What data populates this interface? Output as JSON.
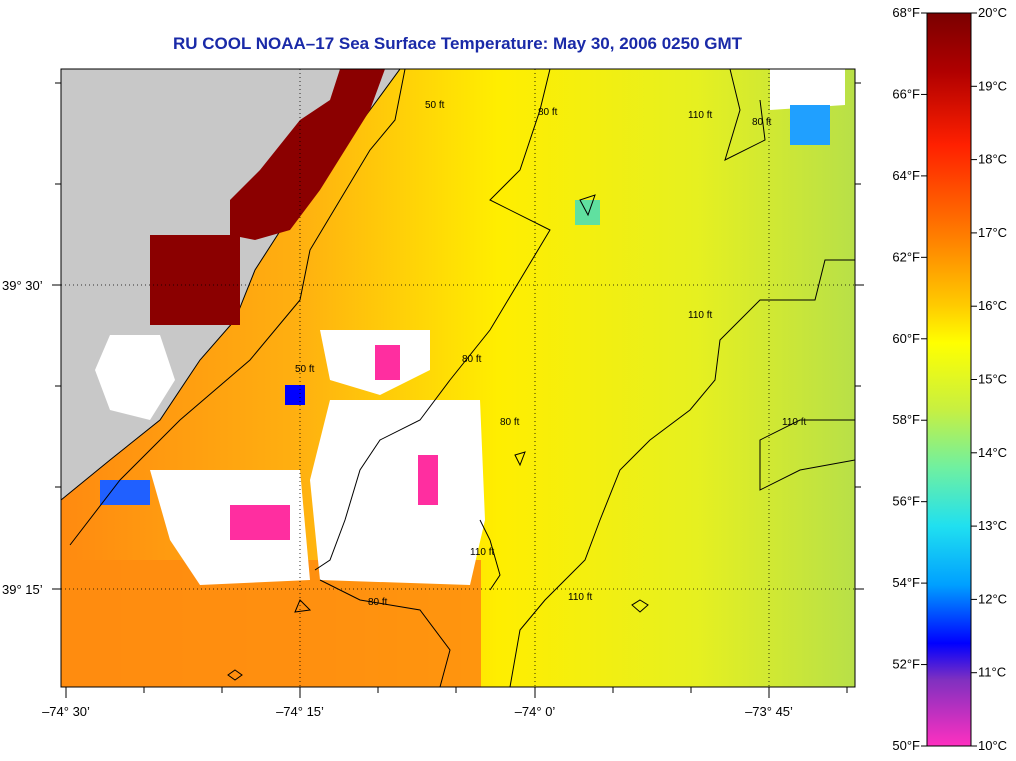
{
  "title": "RU COOL  NOAA–17  Sea Surface Temperature:  May 30, 2006 0250 GMT",
  "map": {
    "lat_labels": [
      "39° 30’",
      "39° 15’"
    ],
    "lon_labels": [
      "–74° 30’",
      "–74° 15’",
      "–74° 0’",
      "–73° 45’"
    ],
    "contour_labels": [
      "50 ft",
      "80 ft",
      "110 ft",
      "80 ft",
      "110 ft",
      "80 ft",
      "110 ft",
      "110 ft",
      "110 ft",
      "80 ft",
      "50 ft",
      "80 ft"
    ],
    "colors": {
      "land": "#c8c8c8",
      "cloud_mask": "#ffffff",
      "warm_inland": "#8b0000",
      "nearshore": "#ff8c00",
      "offshore": "#ffee00",
      "far_offshore": "#b8e040"
    }
  },
  "colorbar": {
    "fahrenheit_labels": [
      "68°F",
      "66°F",
      "64°F",
      "62°F",
      "60°F",
      "58°F",
      "56°F",
      "54°F",
      "52°F",
      "50°F"
    ],
    "celsius_labels": [
      "20°C",
      "19°C",
      "18°C",
      "17°C",
      "16°C",
      "15°C",
      "14°C",
      "13°C",
      "12°C",
      "11°C",
      "10°C"
    ],
    "gradient_stops": [
      "#8b0000",
      "#cc0000",
      "#ff2000",
      "#ff7000",
      "#ffb000",
      "#ffee00",
      "#d8f040",
      "#80f080",
      "#20e0e0",
      "#00a0ff",
      "#0000ff",
      "#8020c0",
      "#ff20c0"
    ]
  }
}
